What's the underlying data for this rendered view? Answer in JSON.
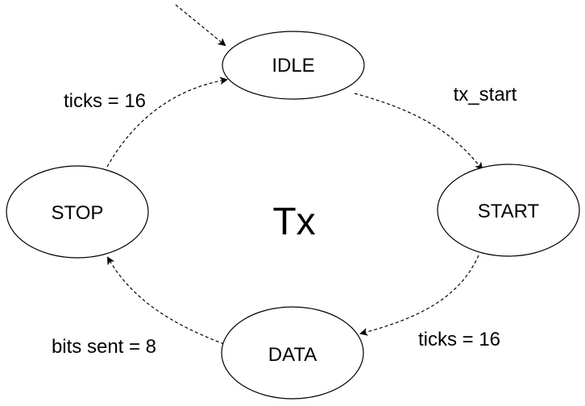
{
  "diagram": {
    "type": "state-machine",
    "center_label": "Tx",
    "states": {
      "idle": "IDLE",
      "start": "START",
      "data": "DATA",
      "stop": "STOP"
    },
    "transitions": {
      "entry": "",
      "idle_to_start": "tx_start",
      "start_to_data": "ticks = 16",
      "data_to_stop": "bits sent = 8",
      "stop_to_idle": "ticks = 16"
    },
    "colors": {
      "stroke": "#000000",
      "background": "#ffffff",
      "text": "#000000"
    }
  }
}
